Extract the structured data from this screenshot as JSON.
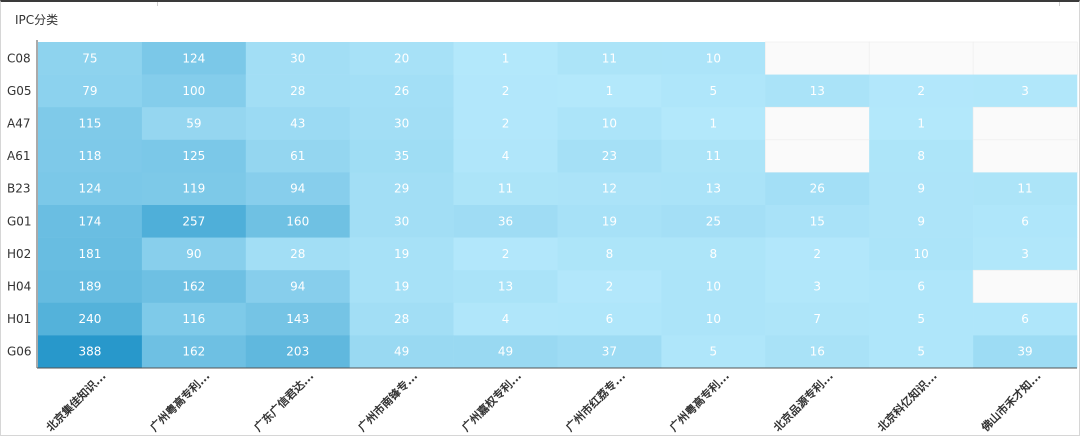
{
  "chart_data": {
    "type": "heatmap",
    "title": "IPC分类",
    "rows": [
      "C08",
      "G05",
      "A47",
      "A61",
      "B23",
      "G01",
      "H02",
      "H04",
      "H01",
      "G06"
    ],
    "columns": [
      "北京集佳知识...",
      "广州粤高专利...",
      "广东广信君达...",
      "广州市南锋专...",
      "广州嘉权专利...",
      "广州市红荔专...",
      "广州粤高专利...",
      "北京品源专利...",
      "北京科亿知识...",
      "佛山市禾才知..."
    ],
    "values": [
      [
        75,
        124,
        30,
        20,
        1,
        11,
        10,
        null,
        null,
        null
      ],
      [
        79,
        100,
        28,
        26,
        2,
        1,
        5,
        13,
        2,
        3
      ],
      [
        115,
        59,
        43,
        30,
        2,
        10,
        1,
        null,
        1,
        null
      ],
      [
        118,
        125,
        61,
        35,
        4,
        23,
        11,
        null,
        8,
        null
      ],
      [
        124,
        119,
        94,
        29,
        11,
        12,
        13,
        26,
        9,
        11
      ],
      [
        174,
        257,
        160,
        30,
        36,
        19,
        25,
        15,
        9,
        6
      ],
      [
        181,
        90,
        28,
        19,
        2,
        8,
        8,
        2,
        10,
        3
      ],
      [
        189,
        162,
        94,
        19,
        13,
        2,
        10,
        3,
        6,
        null
      ],
      [
        240,
        116,
        143,
        28,
        4,
        6,
        10,
        7,
        5,
        6
      ],
      [
        388,
        162,
        203,
        49,
        49,
        37,
        5,
        16,
        5,
        39
      ]
    ],
    "color_min": "#b3e8fb",
    "color_max": "#2898cb",
    "empty_color": "#fafafa",
    "label_color": "#ffffff"
  }
}
